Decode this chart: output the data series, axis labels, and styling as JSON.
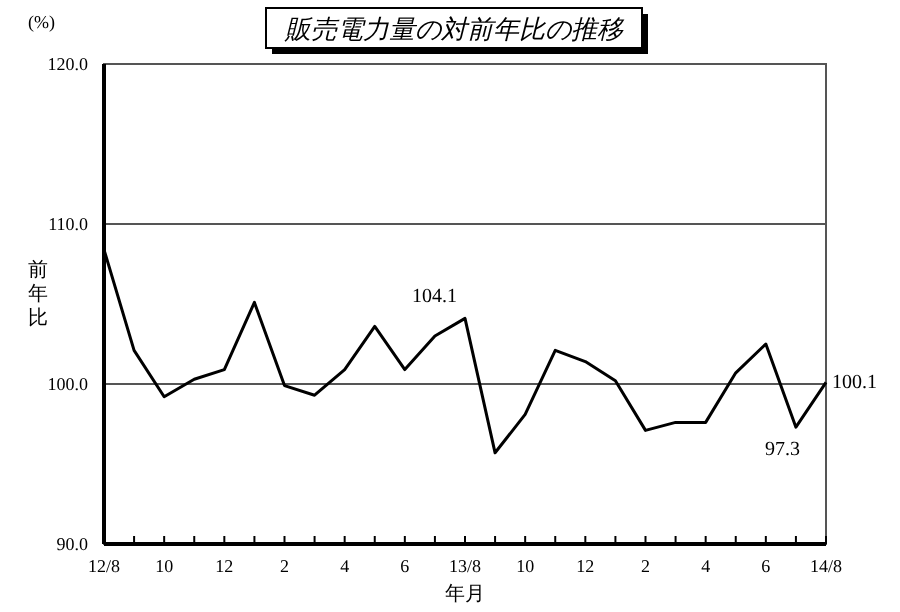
{
  "chart_data": {
    "type": "line",
    "title": "販売電力量の対前年比の推移",
    "xlabel": "年月",
    "ylabel": "前年比",
    "annotations": [
      "(%)"
    ],
    "categories": [
      "12/8",
      null,
      "10",
      null,
      "12",
      null,
      "2",
      null,
      "4",
      null,
      "6",
      null,
      "13/8",
      null,
      "10",
      null,
      "12",
      null,
      "2",
      null,
      "4",
      null,
      "6",
      null,
      "14/8"
    ],
    "series": [
      {
        "color": "#000000",
        "values": [
          108.4,
          102.1,
          99.2,
          100.3,
          100.9,
          105.1,
          99.9,
          99.3,
          100.9,
          103.6,
          100.9,
          103.0,
          104.1,
          95.7,
          98.1,
          102.1,
          101.4,
          100.2,
          97.1,
          97.6,
          97.6,
          100.7,
          102.5,
          97.3,
          100.1
        ],
        "value_labels": [
          null,
          null,
          null,
          null,
          null,
          null,
          null,
          null,
          null,
          null,
          null,
          null,
          "104.1",
          null,
          null,
          null,
          null,
          null,
          null,
          null,
          null,
          null,
          null,
          "97.3",
          "100.1"
        ]
      }
    ],
    "ylim": [
      90,
      120
    ],
    "yticks": [
      {
        "value": 90,
        "label": "90.0"
      },
      {
        "value": 100,
        "label": "100.0"
      },
      {
        "value": 110,
        "label": "110.0"
      },
      {
        "value": 120,
        "label": "120.0"
      }
    ],
    "grid": "y"
  }
}
